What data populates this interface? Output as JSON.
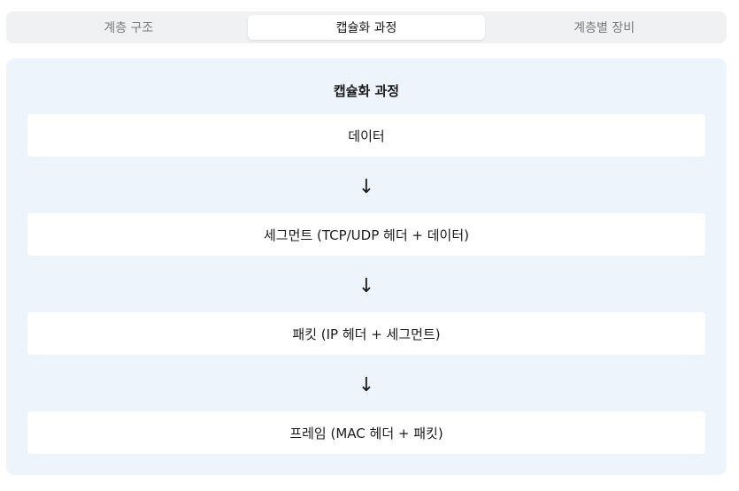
{
  "tabs": [
    {
      "label": "계층 구조"
    },
    {
      "label": "캡슐화 과정"
    },
    {
      "label": "계층별 장비"
    }
  ],
  "panel": {
    "title": "캡슐화 과정",
    "steps": [
      {
        "label": "데이터"
      },
      {
        "label": "세그먼트 (TCP/UDP 헤더 + 데이터)"
      },
      {
        "label": "패킷 (IP 헤더 + 세그먼트)"
      },
      {
        "label": "프레임 (MAC 헤더 + 패킷)"
      }
    ],
    "arrow_glyph": "↓"
  }
}
